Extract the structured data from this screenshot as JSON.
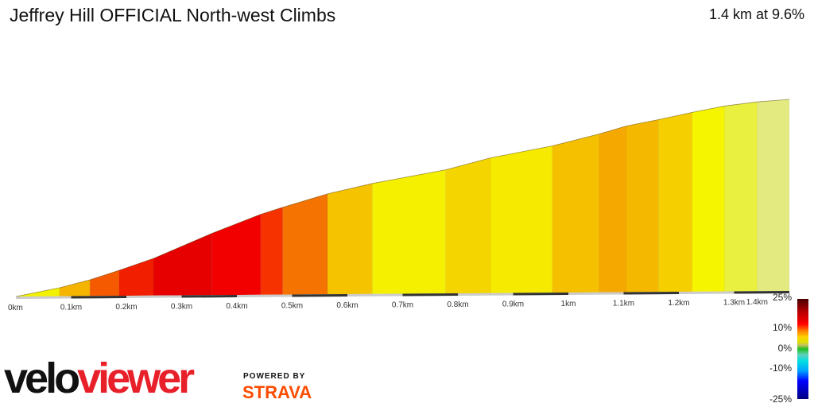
{
  "header": {
    "title": "Jeffrey Hill OFFICIAL North-west Climbs",
    "summary": "1.4 km at 9.6%"
  },
  "chart_data": {
    "type": "area",
    "title": "Jeffrey Hill OFFICIAL North-west Climbs",
    "xlabel": "",
    "ylabel": "",
    "xlim": [
      0,
      1.4
    ],
    "x_unit": "km",
    "x_ticks": [
      "0km",
      "0.1km",
      "0.2km",
      "0.3km",
      "0.4km",
      "0.5km",
      "0.6km",
      "0.7km",
      "0.8km",
      "0.9km",
      "1km",
      "1.1km",
      "1.2km",
      "1.3km",
      "1.4km"
    ],
    "distance_km": [
      0,
      0.079,
      0.134,
      0.187,
      0.249,
      0.355,
      0.443,
      0.483,
      0.564,
      0.645,
      0.778,
      0.859,
      0.971,
      1.056,
      1.105,
      1.163,
      1.224,
      1.283,
      1.342,
      1.4
    ],
    "elevation_gain_m": [
      0,
      5.9,
      11.3,
      17.8,
      25.9,
      43.2,
      56.2,
      61.0,
      70.2,
      77.2,
      86.4,
      94.5,
      102.6,
      110.7,
      116.1,
      120.4,
      125.3,
      129.6,
      132.3,
      133.9
    ],
    "segment_colors": [
      "#f2f200",
      "#f5b400",
      "#f55a00",
      "#f21e00",
      "#e60000",
      "#f20000",
      "#f53200",
      "#f57300",
      "#f5c300",
      "#f5f000",
      "#f5d500",
      "#f5ea00",
      "#f5c000",
      "#f4a800",
      "#f5b800",
      "#f5cf00",
      "#f5f500",
      "#eaf040",
      "#e2ea80"
    ],
    "grid": false,
    "legend": {
      "type": "gradient-colorbar",
      "placement": "bottom-right",
      "labels": [
        "25%",
        "10%",
        "0%",
        "-10%",
        "-25%"
      ]
    }
  },
  "branding": {
    "logo_part1": "velo",
    "logo_part2": "viewer",
    "powered_by": "POWERED BY",
    "strava": "STRAVA",
    "strava_color": "#fc4c02"
  }
}
